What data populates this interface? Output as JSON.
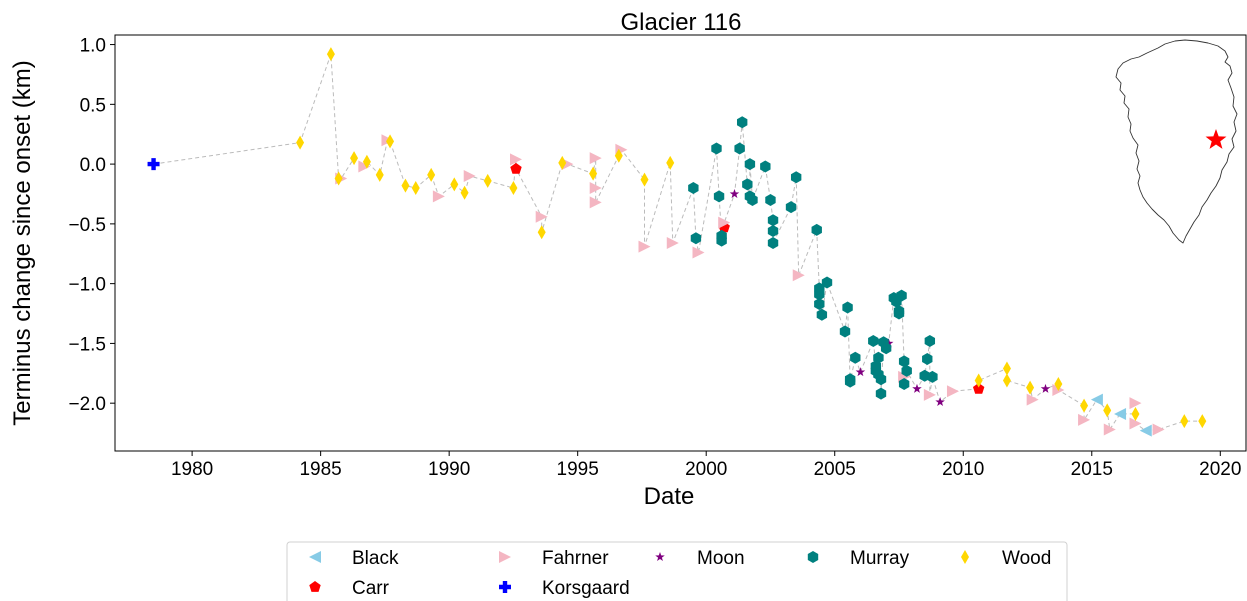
{
  "chart_data": {
    "type": "scatter",
    "title": "Glacier 116",
    "xlabel": "Date",
    "ylabel": "Terminus change since onset (km)",
    "xlim": [
      1977,
      2021
    ],
    "ylim": [
      -2.4,
      1.08
    ],
    "xticks": [
      1980,
      1985,
      1990,
      1995,
      2000,
      2005,
      2010,
      2015,
      2020
    ],
    "yticks": [
      1.0,
      0.5,
      0.0,
      -0.5,
      -1.0,
      -1.5,
      -2.0
    ],
    "ytick_labels": [
      "1.0",
      "0.5",
      "0.0",
      "−0.5",
      "−1.0",
      "−1.5",
      "−2.0"
    ],
    "grid": false,
    "connector_color": "#bbbbbb",
    "legend_position": "bottom",
    "series": [
      {
        "name": "Black",
        "color": "#87cbe6",
        "marker": "triangle-left",
        "points": [
          [
            2015.2,
            -1.97
          ],
          [
            2016.1,
            -2.09
          ],
          [
            2017.1,
            -2.23
          ]
        ]
      },
      {
        "name": "Carr",
        "color": "#ff0000",
        "marker": "pentagon",
        "points": [
          [
            1992.6,
            -0.04
          ],
          [
            2000.7,
            -0.53
          ],
          [
            2010.6,
            -1.88
          ]
        ]
      },
      {
        "name": "Fahrner",
        "color": "#f4b6c2",
        "marker": "triangle-right",
        "points": [
          [
            1985.8,
            -0.12
          ],
          [
            1986.7,
            -0.02
          ],
          [
            1987.6,
            0.2
          ],
          [
            1989.6,
            -0.27
          ],
          [
            1990.8,
            -0.1
          ],
          [
            1992.6,
            0.04
          ],
          [
            1993.6,
            -0.44
          ],
          [
            1994.6,
            0.0
          ],
          [
            1995.7,
            0.05
          ],
          [
            1995.7,
            -0.2
          ],
          [
            1995.7,
            -0.32
          ],
          [
            1996.7,
            0.12
          ],
          [
            1997.6,
            -0.69
          ],
          [
            1998.7,
            -0.66
          ],
          [
            1999.7,
            -0.74
          ],
          [
            2000.7,
            -0.49
          ],
          [
            2003.6,
            -0.93
          ],
          [
            2007.7,
            -1.78
          ],
          [
            2008.7,
            -1.93
          ],
          [
            2009.6,
            -1.9
          ],
          [
            2012.7,
            -1.97
          ],
          [
            2013.7,
            -1.89
          ],
          [
            2014.7,
            -2.14
          ],
          [
            2015.7,
            -2.22
          ],
          [
            2016.7,
            -2.0
          ],
          [
            2016.7,
            -2.17
          ],
          [
            2017.6,
            -2.22
          ]
        ]
      },
      {
        "name": "Korsgaard",
        "color": "#0000ff",
        "marker": "plus",
        "points": [
          [
            1978.5,
            0.0
          ]
        ]
      },
      {
        "name": "Moon",
        "color": "#800080",
        "marker": "star",
        "points": [
          [
            2001.1,
            -0.25
          ],
          [
            2006.0,
            -1.74
          ],
          [
            2007.1,
            -1.5
          ],
          [
            2008.2,
            -1.88
          ],
          [
            2009.1,
            -1.99
          ],
          [
            2013.2,
            -1.88
          ]
        ]
      },
      {
        "name": "Murray",
        "color": "#00807f",
        "marker": "hexagon",
        "points": [
          [
            1999.5,
            -0.2
          ],
          [
            1999.6,
            -0.62
          ],
          [
            2000.4,
            0.13
          ],
          [
            2000.5,
            -0.27
          ],
          [
            2000.6,
            -0.6
          ],
          [
            2000.6,
            -0.64
          ],
          [
            2001.3,
            0.13
          ],
          [
            2001.4,
            0.35
          ],
          [
            2001.6,
            -0.17
          ],
          [
            2001.7,
            -0.27
          ],
          [
            2001.7,
            0.0
          ],
          [
            2001.8,
            -0.3
          ],
          [
            2002.3,
            -0.02
          ],
          [
            2002.5,
            -0.3
          ],
          [
            2002.6,
            -0.47
          ],
          [
            2002.6,
            -0.56
          ],
          [
            2002.6,
            -0.66
          ],
          [
            2003.3,
            -0.36
          ],
          [
            2003.5,
            -0.11
          ],
          [
            2004.3,
            -0.55
          ],
          [
            2004.4,
            -1.04
          ],
          [
            2004.4,
            -1.09
          ],
          [
            2004.4,
            -1.17
          ],
          [
            2004.5,
            -1.26
          ],
          [
            2004.7,
            -0.99
          ],
          [
            2005.4,
            -1.4
          ],
          [
            2005.5,
            -1.2
          ],
          [
            2005.6,
            -1.8
          ],
          [
            2005.6,
            -1.82
          ],
          [
            2005.8,
            -1.62
          ],
          [
            2006.5,
            -1.48
          ],
          [
            2006.6,
            -1.69
          ],
          [
            2006.6,
            -1.73
          ],
          [
            2006.7,
            -1.62
          ],
          [
            2006.7,
            -1.76
          ],
          [
            2006.8,
            -1.8
          ],
          [
            2006.8,
            -1.92
          ],
          [
            2006.9,
            -1.49
          ],
          [
            2007.0,
            -1.54
          ],
          [
            2007.3,
            -1.12
          ],
          [
            2007.4,
            -1.15
          ],
          [
            2007.5,
            -1.23
          ],
          [
            2007.5,
            -1.25
          ],
          [
            2007.6,
            -1.1
          ],
          [
            2007.7,
            -1.65
          ],
          [
            2007.7,
            -1.84
          ],
          [
            2007.8,
            -1.73
          ],
          [
            2008.5,
            -1.77
          ],
          [
            2008.6,
            -1.63
          ],
          [
            2008.7,
            -1.48
          ],
          [
            2008.8,
            -1.78
          ]
        ]
      },
      {
        "name": "Wood",
        "color": "#ffd700",
        "marker": "thin-diamond",
        "points": [
          [
            1984.2,
            0.18
          ],
          [
            1985.4,
            0.92
          ],
          [
            1985.7,
            -0.12
          ],
          [
            1986.3,
            0.05
          ],
          [
            1986.8,
            0.02
          ],
          [
            1987.3,
            -0.09
          ],
          [
            1987.7,
            0.19
          ],
          [
            1988.3,
            -0.18
          ],
          [
            1988.7,
            -0.2
          ],
          [
            1989.3,
            -0.09
          ],
          [
            1990.2,
            -0.17
          ],
          [
            1990.6,
            -0.24
          ],
          [
            1991.5,
            -0.14
          ],
          [
            1992.5,
            -0.2
          ],
          [
            1993.6,
            -0.57
          ],
          [
            1994.4,
            0.01
          ],
          [
            1995.6,
            -0.08
          ],
          [
            1996.6,
            0.07
          ],
          [
            1997.6,
            -0.13
          ],
          [
            1998.6,
            0.01
          ],
          [
            2010.6,
            -1.81
          ],
          [
            2011.7,
            -1.71
          ],
          [
            2011.7,
            -1.81
          ],
          [
            2012.6,
            -1.87
          ],
          [
            2013.7,
            -1.84
          ],
          [
            2014.7,
            -2.02
          ],
          [
            2015.6,
            -2.06
          ],
          [
            2016.7,
            -2.09
          ],
          [
            2018.6,
            -2.15
          ],
          [
            2019.3,
            -2.15
          ]
        ]
      }
    ],
    "line_order": [
      [
        1978.5,
        0.0
      ],
      [
        1984.2,
        0.18
      ],
      [
        1985.4,
        0.92
      ],
      [
        1985.7,
        -0.12
      ],
      [
        1985.8,
        -0.12
      ],
      [
        1986.3,
        0.05
      ],
      [
        1986.7,
        -0.02
      ],
      [
        1986.8,
        0.02
      ],
      [
        1987.3,
        -0.09
      ],
      [
        1987.6,
        0.2
      ],
      [
        1987.7,
        0.19
      ],
      [
        1988.3,
        -0.18
      ],
      [
        1988.7,
        -0.2
      ],
      [
        1989.3,
        -0.09
      ],
      [
        1989.6,
        -0.27
      ],
      [
        1990.2,
        -0.17
      ],
      [
        1990.6,
        -0.24
      ],
      [
        1990.8,
        -0.1
      ],
      [
        1991.5,
        -0.14
      ],
      [
        1992.5,
        -0.2
      ],
      [
        1992.6,
        0.04
      ],
      [
        1992.6,
        -0.04
      ],
      [
        1993.6,
        -0.44
      ],
      [
        1993.6,
        -0.57
      ],
      [
        1994.4,
        0.01
      ],
      [
        1994.6,
        0.0
      ],
      [
        1995.6,
        -0.08
      ],
      [
        1995.7,
        0.05
      ],
      [
        1995.7,
        -0.2
      ],
      [
        1995.7,
        -0.32
      ],
      [
        1996.6,
        0.07
      ],
      [
        1996.7,
        0.12
      ],
      [
        1997.6,
        -0.13
      ],
      [
        1997.6,
        -0.69
      ],
      [
        1998.6,
        0.01
      ],
      [
        1998.7,
        -0.66
      ],
      [
        1999.5,
        -0.2
      ],
      [
        1999.6,
        -0.62
      ],
      [
        1999.7,
        -0.74
      ],
      [
        2000.4,
        0.13
      ],
      [
        2000.5,
        -0.27
      ],
      [
        2000.6,
        -0.6
      ],
      [
        2000.6,
        -0.64
      ],
      [
        2000.7,
        -0.53
      ],
      [
        2000.7,
        -0.49
      ],
      [
        2001.1,
        -0.25
      ],
      [
        2001.3,
        0.13
      ],
      [
        2001.4,
        0.35
      ],
      [
        2001.6,
        -0.17
      ],
      [
        2001.7,
        -0.27
      ],
      [
        2001.7,
        0.0
      ],
      [
        2001.8,
        -0.3
      ],
      [
        2002.3,
        -0.02
      ],
      [
        2002.5,
        -0.3
      ],
      [
        2002.6,
        -0.47
      ],
      [
        2002.6,
        -0.56
      ],
      [
        2002.6,
        -0.66
      ],
      [
        2003.3,
        -0.36
      ],
      [
        2003.5,
        -0.11
      ],
      [
        2003.6,
        -0.93
      ],
      [
        2004.3,
        -0.55
      ],
      [
        2004.4,
        -1.04
      ],
      [
        2004.4,
        -1.09
      ],
      [
        2004.4,
        -1.17
      ],
      [
        2004.5,
        -1.26
      ],
      [
        2004.7,
        -0.99
      ],
      [
        2005.4,
        -1.4
      ],
      [
        2005.5,
        -1.2
      ],
      [
        2005.6,
        -1.8
      ],
      [
        2005.6,
        -1.82
      ],
      [
        2005.8,
        -1.62
      ],
      [
        2006.0,
        -1.74
      ],
      [
        2006.5,
        -1.48
      ],
      [
        2006.6,
        -1.69
      ],
      [
        2006.6,
        -1.73
      ],
      [
        2006.7,
        -1.62
      ],
      [
        2006.7,
        -1.76
      ],
      [
        2006.8,
        -1.8
      ],
      [
        2006.8,
        -1.92
      ],
      [
        2006.9,
        -1.49
      ],
      [
        2007.0,
        -1.54
      ],
      [
        2007.1,
        -1.5
      ],
      [
        2007.3,
        -1.12
      ],
      [
        2007.4,
        -1.15
      ],
      [
        2007.5,
        -1.23
      ],
      [
        2007.5,
        -1.25
      ],
      [
        2007.6,
        -1.1
      ],
      [
        2007.7,
        -1.65
      ],
      [
        2007.7,
        -1.84
      ],
      [
        2007.7,
        -1.78
      ],
      [
        2007.8,
        -1.73
      ],
      [
        2008.2,
        -1.88
      ],
      [
        2008.5,
        -1.77
      ],
      [
        2008.6,
        -1.63
      ],
      [
        2008.7,
        -1.48
      ],
      [
        2008.7,
        -1.93
      ],
      [
        2008.8,
        -1.78
      ],
      [
        2009.1,
        -1.99
      ],
      [
        2009.6,
        -1.9
      ],
      [
        2010.6,
        -1.88
      ],
      [
        2010.6,
        -1.81
      ],
      [
        2011.7,
        -1.71
      ],
      [
        2011.7,
        -1.81
      ],
      [
        2012.6,
        -1.87
      ],
      [
        2012.7,
        -1.97
      ],
      [
        2013.2,
        -1.88
      ],
      [
        2013.7,
        -1.84
      ],
      [
        2013.7,
        -1.89
      ],
      [
        2014.7,
        -2.02
      ],
      [
        2014.7,
        -2.14
      ],
      [
        2015.2,
        -1.97
      ],
      [
        2015.6,
        -2.06
      ],
      [
        2015.7,
        -2.22
      ],
      [
        2016.1,
        -2.09
      ],
      [
        2016.7,
        -2.09
      ],
      [
        2016.7,
        -2.0
      ],
      [
        2016.7,
        -2.17
      ],
      [
        2017.1,
        -2.23
      ],
      [
        2017.6,
        -2.22
      ],
      [
        2018.6,
        -2.15
      ],
      [
        2019.3,
        -2.15
      ]
    ],
    "inset": {
      "type": "location-map",
      "marker_color": "#ff0000",
      "marker_icon": "star-icon"
    },
    "legend_order": [
      "Black",
      "Fahrner",
      "Moon",
      "Murray",
      "Wood",
      "Carr",
      "Korsgaard"
    ]
  }
}
